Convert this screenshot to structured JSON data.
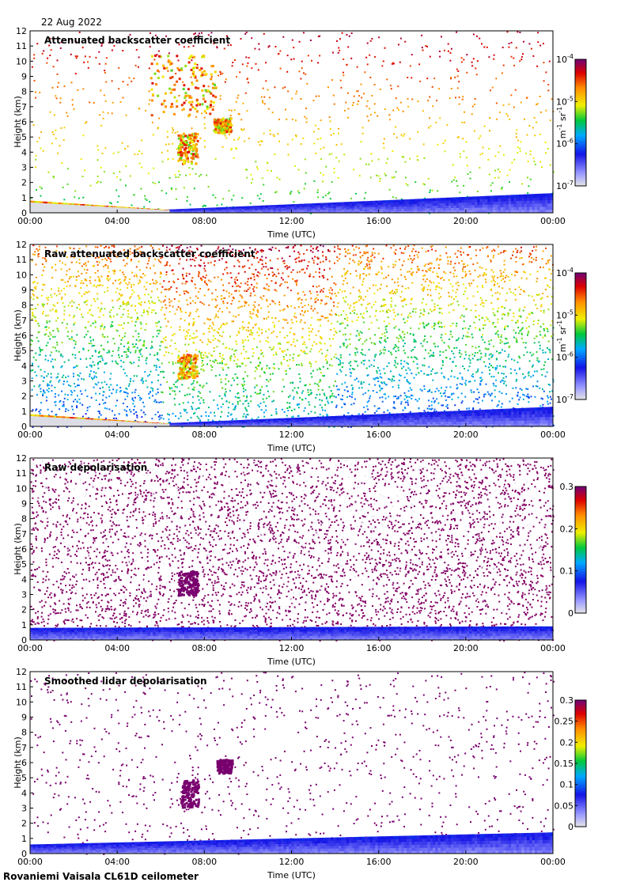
{
  "header": {
    "date": "22 Aug 2022"
  },
  "footer": {
    "site": "Rovaniemi Vaisala CL61D ceilometer"
  },
  "chart_data": [
    {
      "type": "heatmap",
      "title": "Attenuated backscatter coefficient",
      "xlabel": "Time (UTC)",
      "ylabel": "Height (km)",
      "xticks": [
        "00:00",
        "04:00",
        "08:00",
        "12:00",
        "16:00",
        "20:00",
        "00:00"
      ],
      "yticks": [
        "0",
        "1",
        "2",
        "3",
        "4",
        "5",
        "6",
        "7",
        "8",
        "9",
        "10",
        "11",
        "12"
      ],
      "ylim": [
        0,
        12
      ],
      "colorbar": {
        "scale": "log",
        "labels": [
          {
            "base": "10",
            "exp": "-7"
          },
          {
            "base": "10",
            "exp": "-6"
          },
          {
            "base": "10",
            "exp": "-5"
          },
          {
            "base": "10",
            "exp": "-4"
          }
        ],
        "units": {
          "a": "m",
          "a_exp": "-1",
          "b": "sr",
          "b_exp": "-1"
        }
      },
      "features": {
        "background": "sparse",
        "boundary_layer": {
          "from_h": 6,
          "to_h": 24,
          "start_km": 0.2,
          "end_km": 1.3
        },
        "early_layer": {
          "from_h": 0,
          "to_h": 6.3,
          "start_km": 0.8,
          "end_km": 0.2
        },
        "clouds": [
          {
            "t": 7.2,
            "h": 4.3,
            "w": 0.9,
            "ht": 2.0
          },
          {
            "t": 8.8,
            "h": 5.8,
            "w": 0.8,
            "ht": 1.0
          },
          {
            "t": 7.0,
            "h": 8.5,
            "w": 3.0,
            "ht": 4.0
          }
        ]
      }
    },
    {
      "type": "heatmap",
      "title": "Raw attenuated backscatter coefficient",
      "xlabel": "Time (UTC)",
      "ylabel": "Height (km)",
      "xticks": [
        "00:00",
        "04:00",
        "08:00",
        "12:00",
        "16:00",
        "20:00",
        "00:00"
      ],
      "yticks": [
        "0",
        "1",
        "2",
        "3",
        "4",
        "5",
        "6",
        "7",
        "8",
        "9",
        "10",
        "11",
        "12"
      ],
      "ylim": [
        0,
        12
      ],
      "colorbar": {
        "scale": "log",
        "labels": [
          {
            "base": "10",
            "exp": "-7"
          },
          {
            "base": "10",
            "exp": "-6"
          },
          {
            "base": "10",
            "exp": "-5"
          },
          {
            "base": "10",
            "exp": "-4"
          }
        ],
        "units": {
          "a": "m",
          "a_exp": "-1",
          "b": "sr",
          "b_exp": "-1"
        }
      },
      "features": {
        "background": "dense",
        "boundary_layer": {
          "from_h": 6,
          "to_h": 24,
          "start_km": 0.2,
          "end_km": 1.3
        },
        "early_layer": {
          "from_h": 0,
          "to_h": 6.3,
          "start_km": 0.8,
          "end_km": 0.2
        },
        "clouds": [
          {
            "t": 7.2,
            "h": 4.0,
            "w": 0.9,
            "ht": 1.6
          }
        ]
      }
    },
    {
      "type": "heatmap",
      "title": "Raw depolarisation",
      "xlabel": "Time (UTC)",
      "ylabel": "Height (km)",
      "xticks": [
        "00:00",
        "04:00",
        "08:00",
        "12:00",
        "16:00",
        "20:00",
        "00:00"
      ],
      "yticks": [
        "0",
        "1",
        "2",
        "3",
        "4",
        "5",
        "6",
        "7",
        "8",
        "9",
        "10",
        "11",
        "12"
      ],
      "ylim": [
        0,
        12
      ],
      "colorbar": {
        "scale": "linear",
        "range": [
          0,
          0.3
        ],
        "labels": [
          "0",
          "0.1",
          "0.2",
          "0.3"
        ]
      },
      "features": {
        "background": "noise",
        "boundary_layer": {
          "from_h": 0,
          "to_h": 24,
          "start_km": 0.8,
          "end_km": 0.9
        },
        "clouds": [
          {
            "t": 7.2,
            "h": 3.8,
            "w": 0.9,
            "ht": 1.6
          }
        ]
      }
    },
    {
      "type": "heatmap",
      "title": "Smoothed lidar depolarisation",
      "xlabel": "Time (UTC)",
      "ylabel": "Height (km)",
      "xticks": [
        "00:00",
        "04:00",
        "08:00",
        "12:00",
        "16:00",
        "20:00",
        "00:00"
      ],
      "yticks": [
        "0",
        "1",
        "2",
        "3",
        "4",
        "5",
        "6",
        "7",
        "8",
        "9",
        "10",
        "11",
        "12"
      ],
      "ylim": [
        0,
        12
      ],
      "colorbar": {
        "scale": "linear",
        "range": [
          0,
          0.3
        ],
        "labels": [
          "0",
          "0.05",
          "0.1",
          "0.15",
          "0.2",
          "0.25",
          "0.3"
        ]
      },
      "features": {
        "background": "sparse-purple",
        "boundary_layer": {
          "from_h": 0,
          "to_h": 24,
          "start_km": 0.6,
          "end_km": 1.4
        },
        "clouds": [
          {
            "t": 7.3,
            "h": 4.0,
            "w": 0.8,
            "ht": 1.8
          },
          {
            "t": 8.9,
            "h": 5.8,
            "w": 0.7,
            "ht": 0.9
          }
        ]
      }
    }
  ]
}
